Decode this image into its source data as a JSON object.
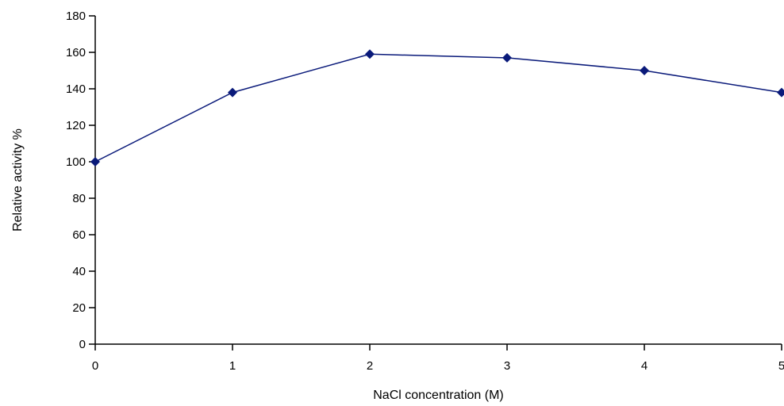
{
  "chart_data": {
    "type": "line",
    "title": "",
    "xlabel": "NaCl concentration (M)",
    "ylabel": "Relative activity %",
    "xlim": [
      0,
      5
    ],
    "ylim": [
      0,
      180
    ],
    "x_ticks": [
      "0",
      "1",
      "2",
      "3",
      "4",
      "5"
    ],
    "y_ticks": [
      "0",
      "20",
      "40",
      "60",
      "80",
      "100",
      "120",
      "140",
      "160",
      "180"
    ],
    "grid": false,
    "legend": "none",
    "series": [
      {
        "color": "#0a1a7a",
        "marker": "diamond",
        "x": [
          0,
          1,
          2,
          3,
          4,
          5
        ],
        "values": [
          100,
          138,
          159,
          157,
          150,
          138
        ]
      }
    ]
  }
}
